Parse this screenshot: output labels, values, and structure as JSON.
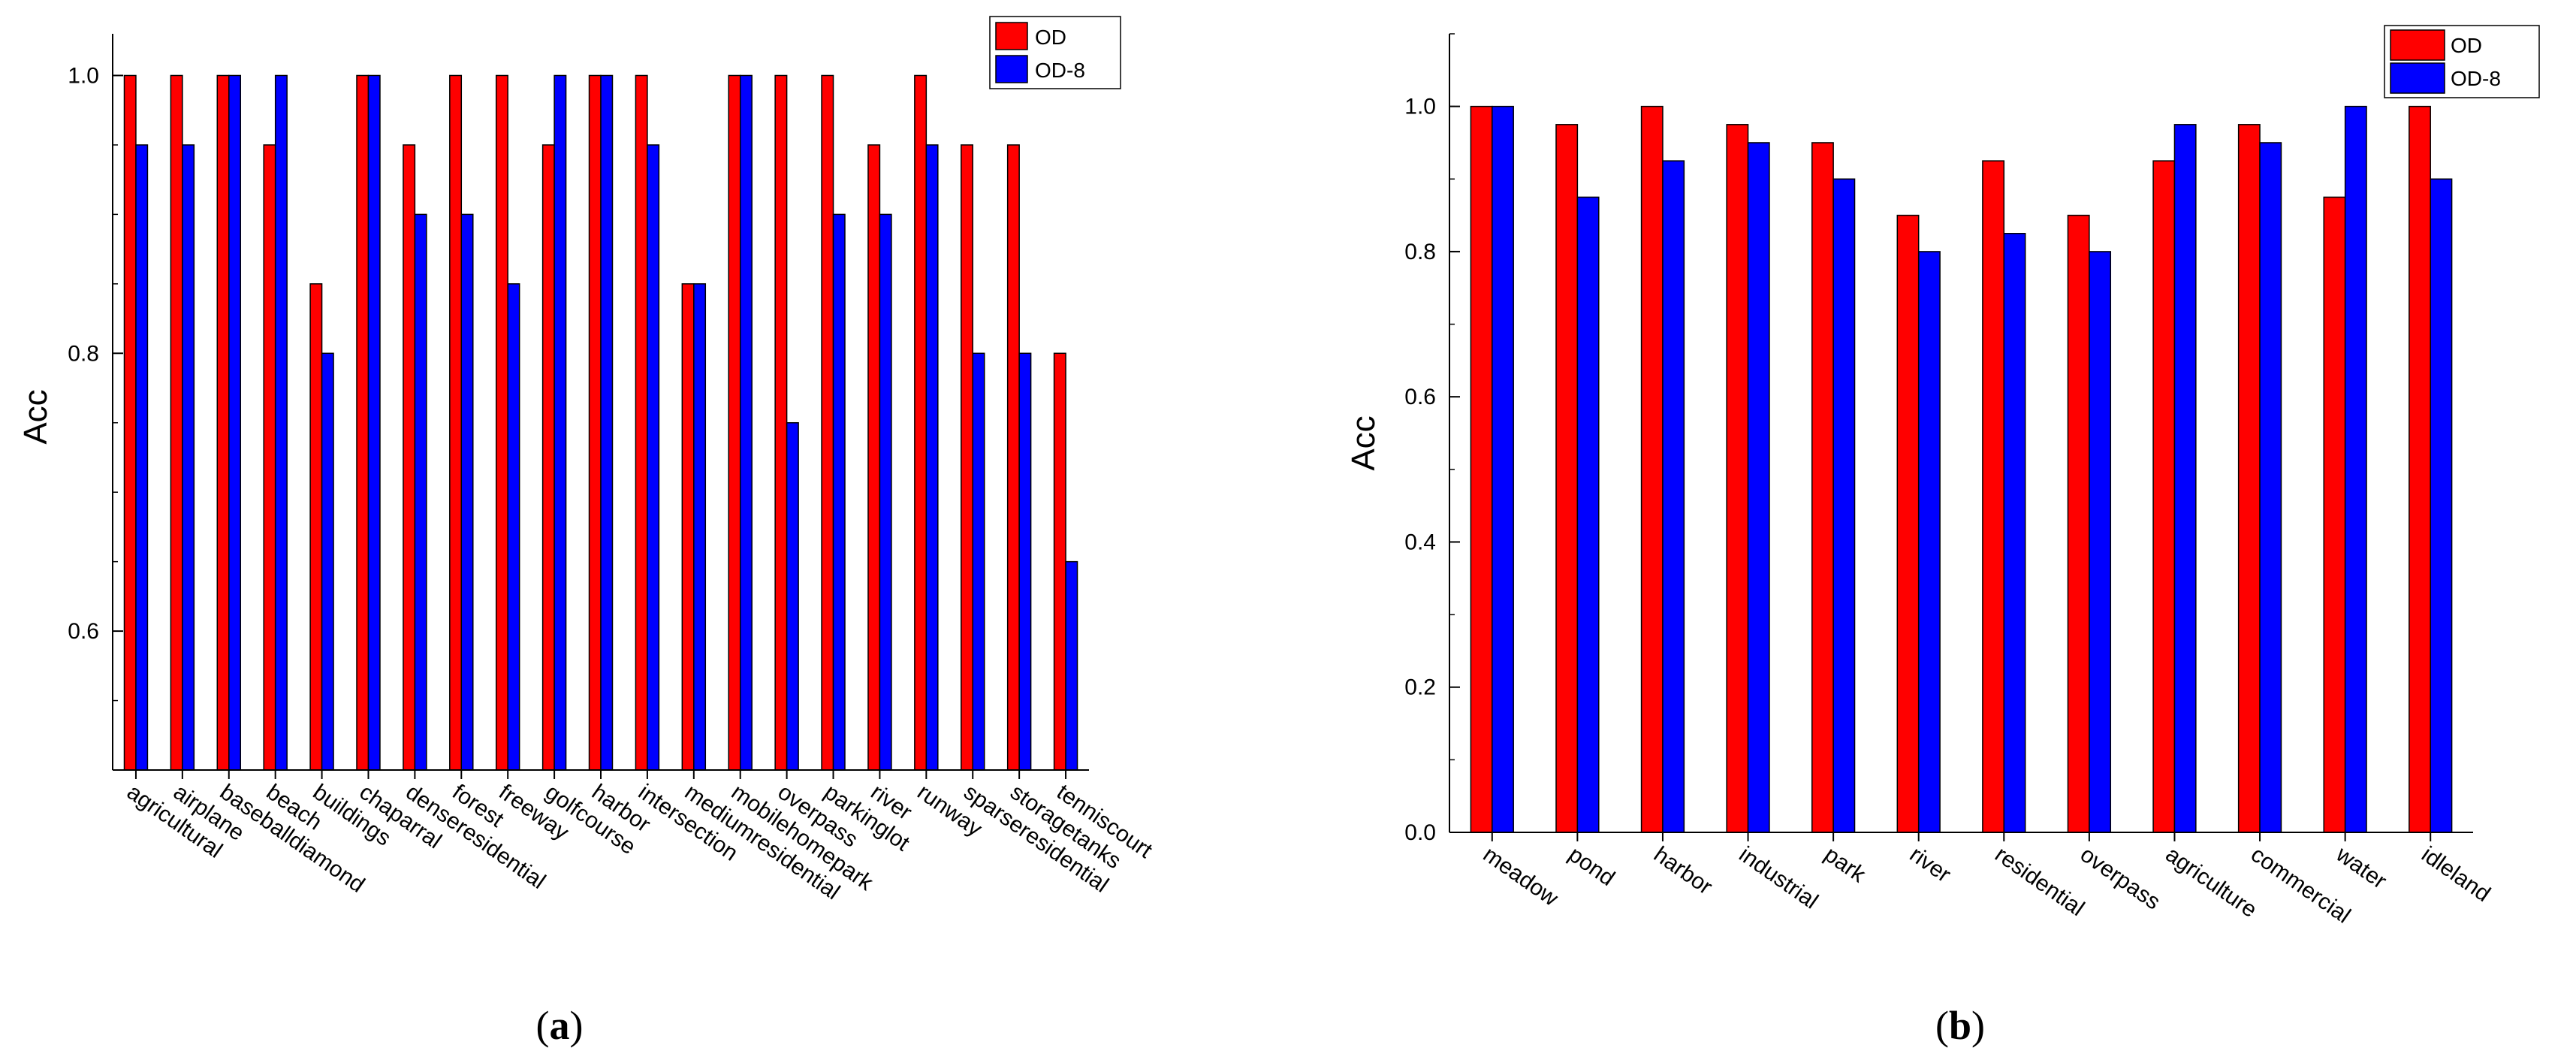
{
  "colors": {
    "od": "#ff0000",
    "od8": "#0000ff",
    "axis": "#000000",
    "bar_stroke": "#000000"
  },
  "chart_data": [
    {
      "id": "a",
      "type": "bar",
      "caption": "a",
      "ylabel": "Acc",
      "xlabel": "",
      "ylim": [
        0.5,
        1.03
      ],
      "yticks": [
        "0.6",
        "0.8",
        "1.0"
      ],
      "ytick_values": [
        0.6,
        0.8,
        1.0
      ],
      "legend_position": "top-right",
      "categories": [
        "agricultural",
        "airplane",
        "baseballdiamond",
        "beach",
        "buildings",
        "chaparral",
        "denseresidential",
        "forest",
        "freeway",
        "golfcourse",
        "harbor",
        "intersection",
        "mediumresidential",
        "mobilehomepark",
        "overpass",
        "parkinglot",
        "river",
        "runway",
        "sparseresidential",
        "storagetanks",
        "tenniscourt"
      ],
      "series": [
        {
          "name": "OD",
          "color": "#ff0000",
          "values": [
            1.0,
            1.0,
            1.0,
            0.95,
            0.85,
            1.0,
            0.95,
            1.0,
            1.0,
            0.95,
            1.0,
            1.0,
            0.85,
            1.0,
            1.0,
            1.0,
            0.95,
            1.0,
            0.95,
            0.95,
            0.8
          ]
        },
        {
          "name": "OD-8",
          "color": "#0000ff",
          "values": [
            0.95,
            0.95,
            1.0,
            1.0,
            0.8,
            1.0,
            0.9,
            0.9,
            0.85,
            1.0,
            1.0,
            0.95,
            0.85,
            1.0,
            0.75,
            0.9,
            0.9,
            0.95,
            0.8,
            0.8,
            0.65
          ]
        }
      ]
    },
    {
      "id": "b",
      "type": "bar",
      "caption": "b",
      "ylabel": "Acc",
      "xlabel": "",
      "ylim": [
        0.0,
        1.1
      ],
      "yticks": [
        "0.0",
        "0.2",
        "0.4",
        "0.6",
        "0.8",
        "1.0"
      ],
      "ytick_values": [
        0.0,
        0.2,
        0.4,
        0.6,
        0.8,
        1.0
      ],
      "legend_position": "top-right",
      "categories": [
        "meadow",
        "pond",
        "harbor",
        "industrial",
        "park",
        "river",
        "residential",
        "overpass",
        "agriculture",
        "commercial",
        "water",
        "idleland"
      ],
      "series": [
        {
          "name": "OD",
          "color": "#ff0000",
          "values": [
            1.0,
            0.975,
            1.0,
            0.975,
            0.95,
            0.85,
            0.925,
            0.85,
            0.925,
            0.975,
            0.875,
            1.0
          ]
        },
        {
          "name": "OD-8",
          "color": "#0000ff",
          "values": [
            1.0,
            0.875,
            0.925,
            0.95,
            0.9,
            0.8,
            0.825,
            0.8,
            0.975,
            0.95,
            1.0,
            0.9
          ]
        }
      ]
    }
  ]
}
